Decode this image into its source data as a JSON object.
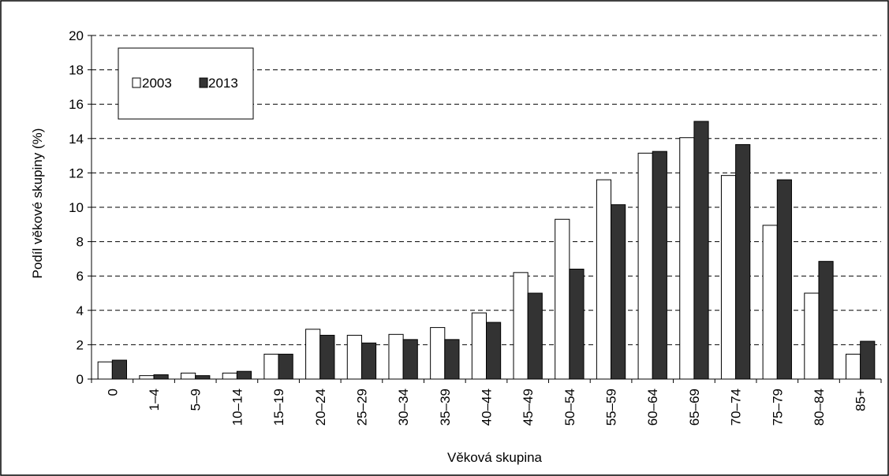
{
  "chart_data": {
    "type": "bar",
    "title": "",
    "xlabel": "Věková skupina",
    "ylabel": "Podíl věkové skupiny (%)",
    "ylim": [
      0,
      20
    ],
    "yticks": [
      "0",
      "2",
      "4",
      "6",
      "8",
      "10",
      "12",
      "14",
      "16",
      "18",
      "20"
    ],
    "grid": true,
    "legend_position": "top-left",
    "categories": [
      "0",
      "1–4",
      "5–9",
      "10–14",
      "15–19",
      "20–24",
      "25–29",
      "30–34",
      "35–39",
      "40–44",
      "45–49",
      "50–54",
      "55–59",
      "60–64",
      "65–69",
      "70–74",
      "75–79",
      "80–84",
      "85+"
    ],
    "series": [
      {
        "name": "2003",
        "color": "#ffffff",
        "values": [
          1.0,
          0.2,
          0.35,
          0.35,
          1.45,
          2.9,
          2.55,
          2.6,
          3.0,
          3.85,
          6.2,
          9.3,
          11.6,
          13.15,
          14.05,
          11.85,
          8.95,
          5.0,
          1.45
        ]
      },
      {
        "name": "2013",
        "color": "#333333",
        "values": [
          1.1,
          0.25,
          0.2,
          0.45,
          1.45,
          2.55,
          2.1,
          2.3,
          2.3,
          3.3,
          5.0,
          6.4,
          10.15,
          13.25,
          15.0,
          13.65,
          11.6,
          6.85,
          2.2
        ]
      }
    ]
  }
}
